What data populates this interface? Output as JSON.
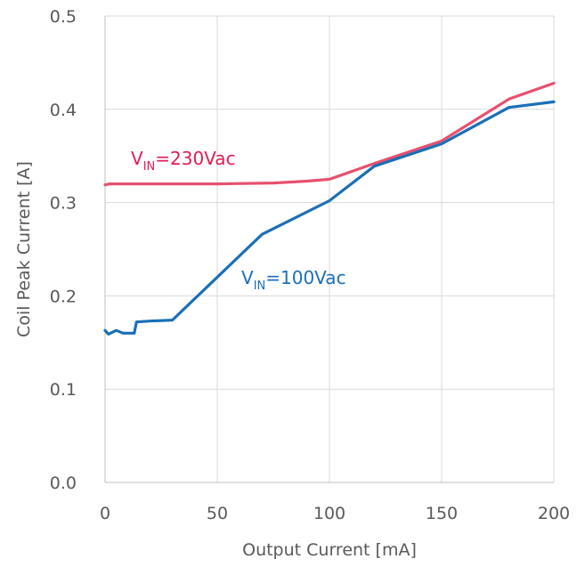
{
  "chart_data": {
    "type": "line",
    "xlabel": "Output Current [mA]",
    "ylabel": "Coil Peak Current  [A]",
    "xlim": [
      0,
      200
    ],
    "ylim": [
      0.0,
      0.5
    ],
    "x_ticks": [
      "0",
      "50",
      "100",
      "150",
      "200"
    ],
    "y_ticks": [
      "0.0",
      "0.1",
      "0.2",
      "0.3",
      "0.4",
      "0.5"
    ],
    "grid": true,
    "series": [
      {
        "label_main": "V",
        "label_sub": "IN",
        "label_rest": "=230Vac",
        "color": "#e8506e",
        "x": [
          0,
          2,
          5,
          10,
          20,
          30,
          50,
          75,
          90,
          100,
          120,
          150,
          180,
          200
        ],
        "y": [
          0.319,
          0.32,
          0.32,
          0.32,
          0.32,
          0.32,
          0.32,
          0.321,
          0.323,
          0.325,
          0.342,
          0.366,
          0.411,
          0.428
        ]
      },
      {
        "label_main": "V",
        "label_sub": "IN",
        "label_rest": "=100Vac",
        "color": "#1a6fb8",
        "x": [
          0,
          1.5,
          5,
          8,
          10,
          13,
          14,
          20,
          30,
          70,
          100,
          120,
          150,
          180,
          200
        ],
        "y": [
          0.163,
          0.159,
          0.163,
          0.16,
          0.16,
          0.16,
          0.172,
          0.173,
          0.174,
          0.266,
          0.302,
          0.339,
          0.363,
          0.402,
          0.408
        ]
      }
    ]
  }
}
